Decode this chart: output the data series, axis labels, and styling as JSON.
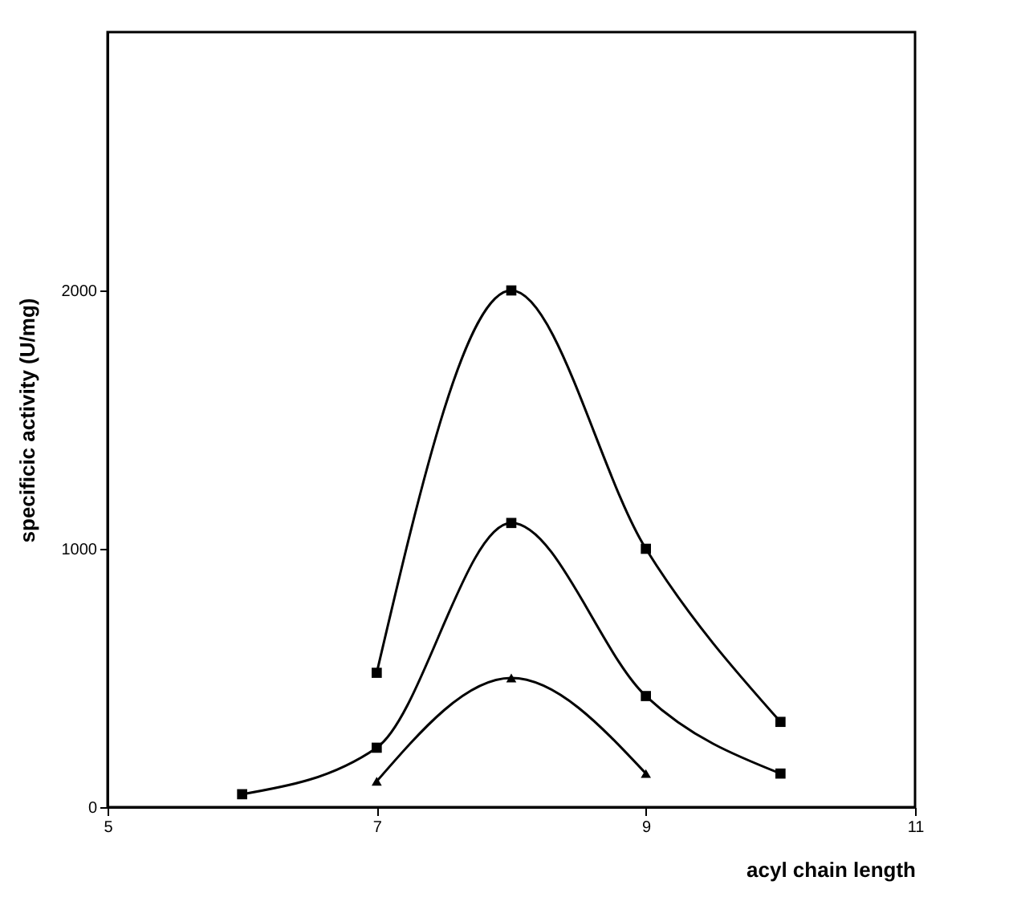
{
  "chart_data": {
    "type": "line",
    "xlabel": "acyl chain length",
    "ylabel": "specificic activity (U/mg)",
    "xlim": [
      5,
      11
    ],
    "xticks": [
      5,
      7,
      9,
      11
    ],
    "ylim": [
      0,
      3000
    ],
    "yticks": [
      0,
      1000,
      2000
    ],
    "grid": false,
    "series": [
      {
        "color": "#000000",
        "marker": "square",
        "x": [
          7,
          8,
          9,
          10
        ],
        "values": [
          520,
          2000,
          1000,
          330
        ]
      },
      {
        "color": "#000000",
        "marker": "square",
        "x": [
          6,
          7,
          8,
          9,
          10
        ],
        "values": [
          50,
          230,
          1100,
          430,
          130
        ]
      },
      {
        "color": "#000000",
        "marker": "triangle",
        "x": [
          7,
          8,
          9
        ],
        "values": [
          100,
          500,
          130
        ]
      }
    ]
  }
}
